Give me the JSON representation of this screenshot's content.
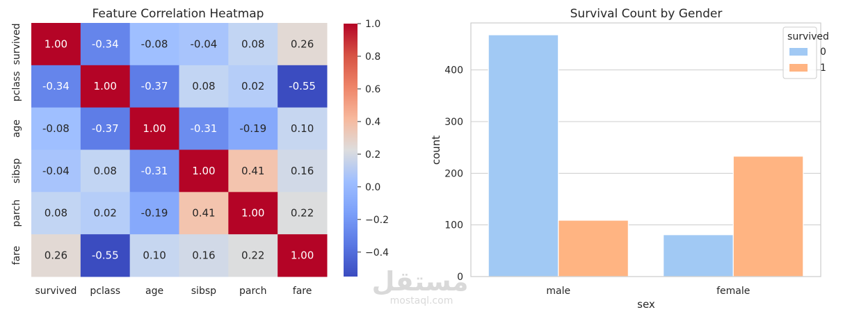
{
  "chart_data": [
    {
      "type": "heatmap",
      "title": "Feature Correlation Heatmap",
      "rows": [
        "survived",
        "pclass",
        "age",
        "sibsp",
        "parch",
        "fare"
      ],
      "columns": [
        "survived",
        "pclass",
        "age",
        "sibsp",
        "parch",
        "fare"
      ],
      "values": [
        [
          1.0,
          -0.34,
          -0.08,
          -0.04,
          0.08,
          0.26
        ],
        [
          -0.34,
          1.0,
          -0.37,
          0.08,
          0.02,
          -0.55
        ],
        [
          -0.08,
          -0.37,
          1.0,
          -0.31,
          -0.19,
          0.1
        ],
        [
          -0.04,
          0.08,
          -0.31,
          1.0,
          0.41,
          0.16
        ],
        [
          0.08,
          0.02,
          -0.19,
          0.41,
          1.0,
          0.22
        ],
        [
          0.26,
          -0.55,
          0.1,
          0.16,
          0.22,
          1.0
        ]
      ],
      "colormap": "coolwarm",
      "colorbar": {
        "range": [
          -0.55,
          1.0
        ],
        "ticks": [
          -0.4,
          -0.2,
          0.0,
          0.2,
          0.4,
          0.6,
          0.8,
          1.0
        ],
        "tick_labels": [
          "−0.4",
          "−0.2",
          "0.0",
          "0.2",
          "0.4",
          "0.6",
          "0.8",
          "1.0"
        ]
      }
    },
    {
      "type": "bar",
      "title": "Survival Count by Gender",
      "xlabel": "sex",
      "ylabel": "count",
      "categories": [
        "male",
        "female"
      ],
      "series": [
        {
          "name": "0",
          "values": [
            468,
            81
          ],
          "color": "#a1c9f4"
        },
        {
          "name": "1",
          "values": [
            109,
            233
          ],
          "color": "#ffb482"
        }
      ],
      "ylim": [
        0,
        491
      ],
      "yticks": [
        0,
        100,
        200,
        300,
        400
      ],
      "grid": true,
      "legend": {
        "title": "survived",
        "placement": "top-right"
      }
    }
  ],
  "watermark": {
    "logo_text": "مستقل",
    "site_text": "mostaql.com"
  }
}
